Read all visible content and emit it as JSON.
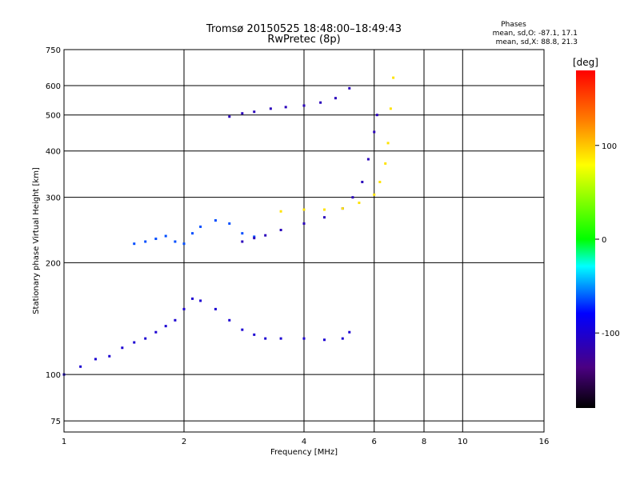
{
  "chart_data": {
    "type": "scatter",
    "title": "Tromsø 20150525 18:48:00–18:49:43",
    "subtitle": "RwPretec (8p)",
    "xlabel": "Frequency [MHz]",
    "ylabel": "Stationary phase Virtual Height [km]",
    "x_scale": "log",
    "y_scale": "log",
    "xlim": [
      1,
      16
    ],
    "ylim": [
      70,
      750
    ],
    "x_ticks": [
      "1",
      "2",
      "4",
      "6",
      "8",
      "10",
      "16"
    ],
    "y_ticks": [
      "75",
      "100",
      "200",
      "300",
      "400",
      "500",
      "600",
      "750"
    ],
    "grid": true,
    "phase_stats": {
      "title": "Phases",
      "line_o": "mean, sd,O: -87.1, 17.1",
      "line_x": "mean, sd,X: 88.8, 21.3"
    },
    "colorbar": {
      "label": "[deg]",
      "ticks": [
        "100",
        "0",
        "-100"
      ],
      "range": [
        -180,
        180
      ]
    },
    "series": [
      {
        "x": [
          1.0,
          1.1,
          1.2,
          1.3,
          1.4,
          1.5,
          1.6,
          1.7,
          1.8,
          1.9,
          2.0,
          2.1,
          2.2,
          2.4,
          2.6,
          2.8,
          3.0,
          3.2,
          3.5,
          4.0,
          4.5,
          5.0,
          5.2
        ],
        "y": [
          100,
          105,
          110,
          112,
          118,
          122,
          125,
          130,
          135,
          140,
          150,
          160,
          158,
          150,
          140,
          132,
          128,
          125,
          125,
          125,
          124,
          125,
          130
        ],
        "phase": -100
      },
      {
        "x": [
          1.5,
          1.6,
          1.7,
          1.8,
          1.9,
          2.0,
          2.1,
          2.2,
          2.4,
          2.6,
          2.8,
          3.0
        ],
        "y": [
          225,
          228,
          232,
          236,
          228,
          225,
          240,
          250,
          260,
          255,
          240,
          235
        ],
        "phase": -65
      },
      {
        "x": [
          2.8,
          3.0,
          3.2,
          3.5,
          4.0,
          4.5,
          5.0,
          5.3,
          5.6,
          5.8,
          6.0,
          6.1
        ],
        "y": [
          228,
          233,
          237,
          245,
          255,
          265,
          280,
          300,
          330,
          380,
          450,
          500
        ],
        "phase": -110
      },
      {
        "x": [
          3.5,
          4.0,
          4.5,
          5.0,
          5.5,
          6.0,
          6.2,
          6.4,
          6.5,
          6.6,
          6.7
        ],
        "y": [
          275,
          278,
          278,
          280,
          290,
          305,
          330,
          370,
          420,
          520,
          630
        ],
        "phase": 90
      },
      {
        "x": [
          2.6,
          2.8,
          3.0,
          3.3,
          3.6,
          4.0,
          4.4,
          4.8,
          5.2
        ],
        "y": [
          495,
          505,
          510,
          520,
          525,
          530,
          540,
          555,
          590
        ],
        "phase": -110
      }
    ]
  }
}
